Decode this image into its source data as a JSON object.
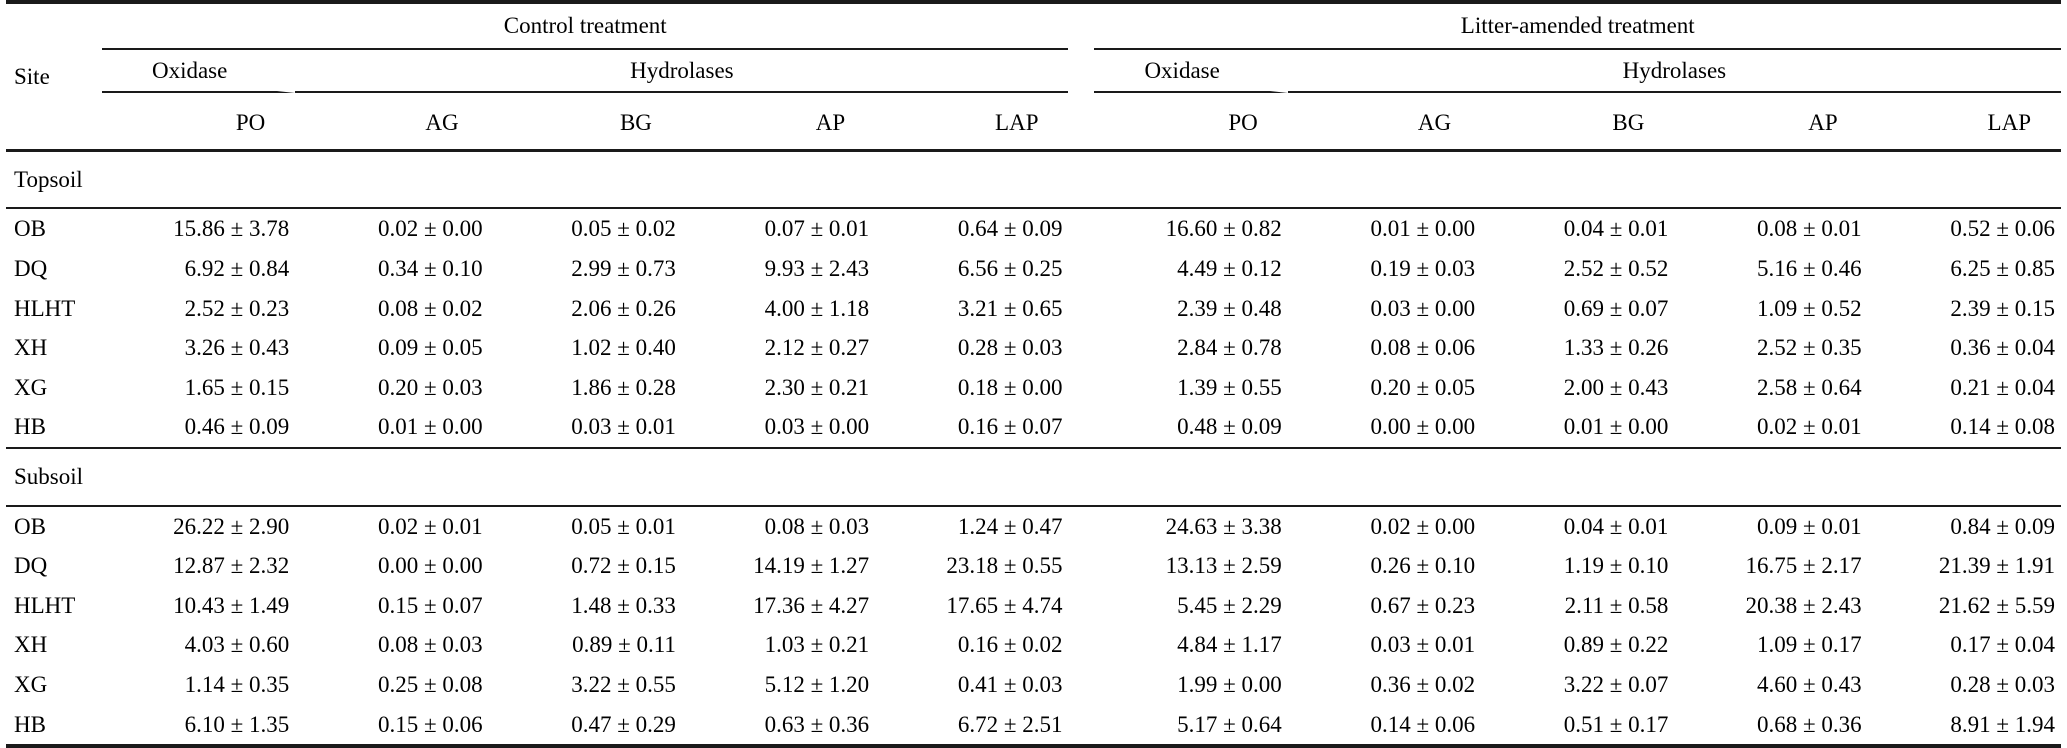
{
  "table": {
    "site_header": "Site",
    "treatments": [
      {
        "label": "Control treatment",
        "oxidase_label": "Oxidase",
        "hydrolases_label": "Hydrolases",
        "columns": [
          "PO",
          "AG",
          "BG",
          "AP",
          "LAP"
        ]
      },
      {
        "label": "Litter-amended treatment",
        "oxidase_label": "Oxidase",
        "hydrolases_label": "Hydrolases",
        "columns": [
          "PO",
          "AG",
          "BG",
          "AP",
          "LAP"
        ]
      }
    ],
    "sections": [
      {
        "label": "Topsoil",
        "rows": [
          {
            "site": "OB",
            "control": [
              "15.86 ± 3.78",
              "0.02 ± 0.00",
              "0.05 ± 0.02",
              "0.07 ± 0.01",
              "0.64 ± 0.09"
            ],
            "litter": [
              "16.60 ± 0.82",
              "0.01 ± 0.00",
              "0.04 ± 0.01",
              "0.08 ± 0.01",
              "0.52 ± 0.06"
            ]
          },
          {
            "site": "DQ",
            "control": [
              "6.92 ± 0.84",
              "0.34 ± 0.10",
              "2.99 ± 0.73",
              "9.93 ± 2.43",
              "6.56 ± 0.25"
            ],
            "litter": [
              "4.49 ± 0.12",
              "0.19 ± 0.03",
              "2.52 ± 0.52",
              "5.16 ± 0.46",
              "6.25 ± 0.85"
            ]
          },
          {
            "site": "HLHT",
            "control": [
              "2.52 ± 0.23",
              "0.08 ± 0.02",
              "2.06 ± 0.26",
              "4.00 ± 1.18",
              "3.21 ± 0.65"
            ],
            "litter": [
              "2.39 ± 0.48",
              "0.03 ± 0.00",
              "0.69 ± 0.07",
              "1.09 ± 0.52",
              "2.39 ± 0.15"
            ]
          },
          {
            "site": "XH",
            "control": [
              "3.26 ± 0.43",
              "0.09 ± 0.05",
              "1.02 ± 0.40",
              "2.12 ± 0.27",
              "0.28 ± 0.03"
            ],
            "litter": [
              "2.84 ± 0.78",
              "0.08 ± 0.06",
              "1.33 ± 0.26",
              "2.52 ± 0.35",
              "0.36 ± 0.04"
            ]
          },
          {
            "site": "XG",
            "control": [
              "1.65 ± 0.15",
              "0.20 ± 0.03",
              "1.86 ± 0.28",
              "2.30 ± 0.21",
              "0.18 ± 0.00"
            ],
            "litter": [
              "1.39 ± 0.55",
              "0.20 ± 0.05",
              "2.00 ± 0.43",
              "2.58 ± 0.64",
              "0.21 ± 0.04"
            ]
          },
          {
            "site": "HB",
            "control": [
              "0.46 ± 0.09",
              "0.01 ± 0.00",
              "0.03 ± 0.01",
              "0.03 ± 0.00",
              "0.16 ± 0.07"
            ],
            "litter": [
              "0.48 ± 0.09",
              "0.00 ± 0.00",
              "0.01 ± 0.00",
              "0.02 ± 0.01",
              "0.14 ± 0.08"
            ]
          }
        ]
      },
      {
        "label": "Subsoil",
        "rows": [
          {
            "site": "OB",
            "control": [
              "26.22 ± 2.90",
              "0.02 ± 0.01",
              "0.05 ± 0.01",
              "0.08 ± 0.03",
              "1.24 ± 0.47"
            ],
            "litter": [
              "24.63 ± 3.38",
              "0.02 ± 0.00",
              "0.04 ± 0.01",
              "0.09 ± 0.01",
              "0.84 ± 0.09"
            ]
          },
          {
            "site": "DQ",
            "control": [
              "12.87 ± 2.32",
              "0.00 ± 0.00",
              "0.72 ± 0.15",
              "14.19 ± 1.27",
              "23.18 ± 0.55"
            ],
            "litter": [
              "13.13 ± 2.59",
              "0.26 ± 0.10",
              "1.19 ± 0.10",
              "16.75 ± 2.17",
              "21.39 ± 1.91"
            ]
          },
          {
            "site": "HLHT",
            "control": [
              "10.43 ± 1.49",
              "0.15 ± 0.07",
              "1.48 ± 0.33",
              "17.36 ± 4.27",
              "17.65 ± 4.74"
            ],
            "litter": [
              "5.45 ± 2.29",
              "0.67 ± 0.23",
              "2.11 ± 0.58",
              "20.38 ± 2.43",
              "21.62 ± 5.59"
            ]
          },
          {
            "site": "XH",
            "control": [
              "4.03 ± 0.60",
              "0.08 ± 0.03",
              "0.89 ± 0.11",
              "1.03 ± 0.21",
              "0.16 ± 0.02"
            ],
            "litter": [
              "4.84 ± 1.17",
              "0.03 ± 0.01",
              "0.89 ± 0.22",
              "1.09 ± 0.17",
              "0.17 ± 0.04"
            ]
          },
          {
            "site": "XG",
            "control": [
              "1.14 ± 0.35",
              "0.25 ± 0.08",
              "3.22 ± 0.55",
              "5.12 ± 1.20",
              "0.41 ± 0.03"
            ],
            "litter": [
              "1.99 ± 0.00",
              "0.36 ± 0.02",
              "3.22 ± 0.07",
              "4.60 ± 0.43",
              "0.28 ± 0.03"
            ]
          },
          {
            "site": "HB",
            "control": [
              "6.10 ± 1.35",
              "0.15 ± 0.06",
              "0.47 ± 0.29",
              "0.63 ± 0.36",
              "6.72 ± 2.51"
            ],
            "litter": [
              "5.17 ± 0.64",
              "0.14 ± 0.06",
              "0.51 ± 0.17",
              "0.68 ± 0.36",
              "8.91 ± 1.94"
            ]
          }
        ]
      }
    ]
  },
  "colors": {
    "background": "#ffffff",
    "text": "#000000",
    "rule": "#1a1a1a"
  }
}
